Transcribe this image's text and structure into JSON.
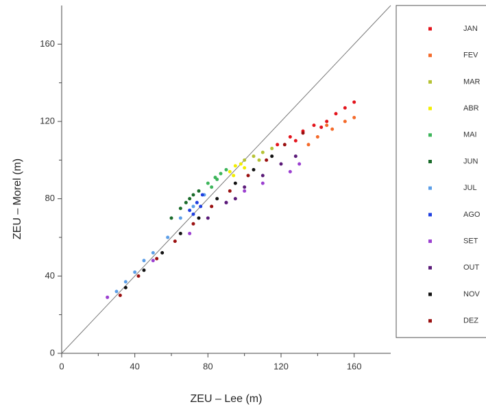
{
  "chart_data": {
    "type": "scatter",
    "x_label": "ZEU – Lee (m)",
    "y_label": "ZEU – Morel (m)",
    "xlim": [
      0,
      180
    ],
    "ylim": [
      0,
      180
    ],
    "xticks": [
      0,
      40,
      80,
      120,
      160
    ],
    "yticks": [
      0,
      40,
      80,
      120,
      160
    ],
    "xminorticks": [
      20,
      60,
      100,
      140
    ],
    "yminorticks": [
      20,
      60,
      100,
      140
    ],
    "identity_line": true,
    "legend": "right",
    "series": [
      {
        "name": "JAN",
        "color": "#e3141c",
        "x": [
          118,
          125,
          132,
          138,
          145,
          150,
          155,
          160,
          142,
          128
        ],
        "values": [
          108,
          112,
          115,
          118,
          120,
          124,
          127,
          130,
          117,
          110
        ]
      },
      {
        "name": "FEV",
        "color": "#f46a2a",
        "x": [
          140,
          148,
          155,
          160,
          135,
          145
        ],
        "values": [
          112,
          116,
          120,
          122,
          108,
          118
        ]
      },
      {
        "name": "MAR",
        "color": "#b5c234",
        "x": [
          100,
          105,
          110,
          115,
          108
        ],
        "values": [
          100,
          102,
          104,
          106,
          100
        ]
      },
      {
        "name": "ABR",
        "color": "#f2ee00",
        "x": [
          92,
          95,
          98,
          100,
          94
        ],
        "values": [
          94,
          97,
          98,
          96,
          92
        ]
      },
      {
        "name": "MAI",
        "color": "#3cb55a",
        "x": [
          80,
          84,
          87,
          90,
          85,
          82
        ],
        "values": [
          88,
          91,
          93,
          95,
          90,
          86
        ]
      },
      {
        "name": "JUN",
        "color": "#1a6b2a",
        "x": [
          60,
          65,
          70,
          75,
          68,
          72
        ],
        "values": [
          70,
          75,
          80,
          84,
          78,
          82
        ]
      },
      {
        "name": "JUL",
        "color": "#5b9ee8",
        "x": [
          30,
          40,
          50,
          58,
          65,
          72,
          78,
          45,
          35
        ],
        "values": [
          32,
          42,
          52,
          60,
          70,
          76,
          82,
          48,
          37
        ]
      },
      {
        "name": "AGO",
        "color": "#1f3fe0",
        "x": [
          70,
          74,
          77,
          72,
          76
        ],
        "values": [
          74,
          78,
          82,
          72,
          76
        ]
      },
      {
        "name": "SET",
        "color": "#9b3fd0",
        "x": [
          25,
          50,
          70,
          90,
          110,
          125,
          130,
          100
        ],
        "values": [
          29,
          48,
          62,
          78,
          88,
          94,
          98,
          84
        ]
      },
      {
        "name": "OUT",
        "color": "#5a1a78",
        "x": [
          80,
          90,
          100,
          110,
          120,
          128,
          95
        ],
        "values": [
          70,
          78,
          86,
          92,
          98,
          102,
          80
        ]
      },
      {
        "name": "NOV",
        "color": "#111111",
        "x": [
          35,
          45,
          55,
          65,
          75,
          85,
          95,
          105,
          115
        ],
        "values": [
          34,
          43,
          52,
          62,
          70,
          80,
          88,
          95,
          102
        ]
      },
      {
        "name": "DEZ",
        "color": "#9a1010",
        "x": [
          32,
          42,
          52,
          62,
          72,
          82,
          92,
          102,
          112,
          122,
          132
        ],
        "values": [
          30,
          40,
          49,
          58,
          67,
          76,
          84,
          92,
          100,
          108,
          114
        ]
      }
    ]
  }
}
